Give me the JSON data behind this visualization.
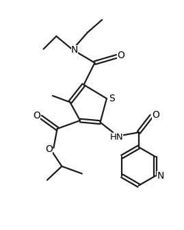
{
  "background_color": "#ffffff",
  "line_color": "#1a1a1a",
  "line_width": 1.6,
  "figsize": [
    2.69,
    3.36
  ],
  "dpi": 100,
  "xlim": [
    0,
    10
  ],
  "ylim": [
    0,
    12.5
  ]
}
